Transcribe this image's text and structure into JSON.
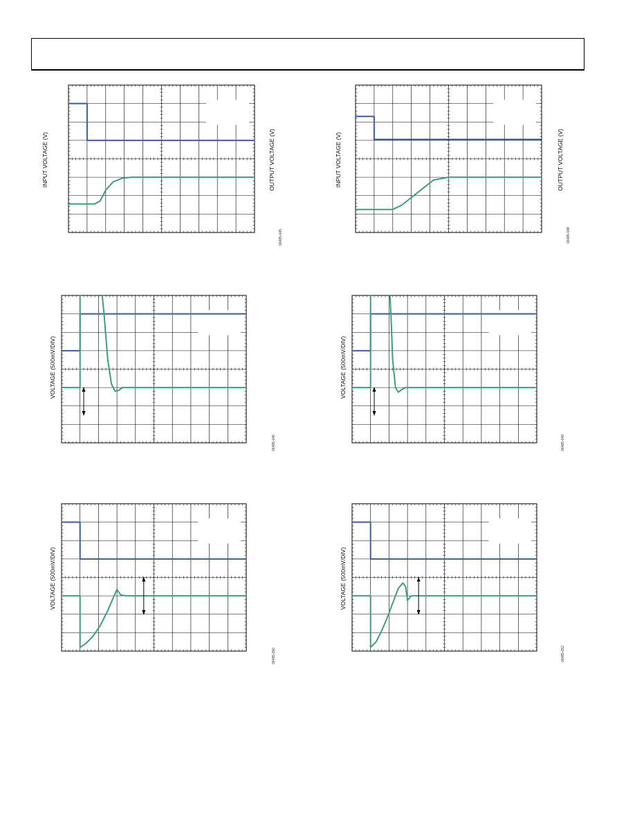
{
  "colors": {
    "input_trace": "#3a5da8",
    "output_trace": "#3aa07a",
    "grid": "#000000",
    "frame": "#000000"
  },
  "page": {
    "header_box": ""
  },
  "chart_data": [
    {
      "id": "fig-1",
      "type": "line",
      "title": "",
      "ylabel_left": "INPUT VOLTAGE (V)",
      "ylabel_right": "OUTPUT VOLTAGE (V)",
      "fig_id": "06485-045",
      "grid": true,
      "x_divisions": 10,
      "y_divisions": 8,
      "xlim": [
        0,
        10
      ],
      "ylim": [
        0,
        8
      ],
      "series": [
        {
          "color_key": "input_trace",
          "x": [
            0,
            1.0,
            1.0,
            10
          ],
          "y": [
            7.0,
            7.0,
            5.0,
            5.0
          ]
        },
        {
          "color_key": "output_trace",
          "x": [
            0,
            1.4,
            1.7,
            2.0,
            2.4,
            2.9,
            3.4,
            10
          ],
          "y": [
            1.55,
            1.55,
            1.7,
            2.3,
            2.75,
            2.95,
            3.0,
            3.0
          ]
        }
      ]
    },
    {
      "id": "fig-2",
      "type": "line",
      "title": "",
      "ylabel_left": "INPUT VOLTAGE (V)",
      "ylabel_right": "OUTPUT VOLTAGE (V)",
      "fig_id": "06485-048",
      "grid": true,
      "x_divisions": 10,
      "y_divisions": 8,
      "xlim": [
        0,
        10
      ],
      "ylim": [
        0,
        8
      ],
      "series": [
        {
          "color_key": "input_trace",
          "x": [
            0,
            1.0,
            1.0,
            10
          ],
          "y": [
            6.3,
            6.3,
            5.05,
            5.05
          ]
        },
        {
          "color_key": "output_trace",
          "x": [
            0,
            2.0,
            2.5,
            3.5,
            4.2,
            5.0,
            10
          ],
          "y": [
            1.25,
            1.25,
            1.5,
            2.3,
            2.85,
            3.0,
            3.0
          ]
        }
      ]
    },
    {
      "id": "fig-3",
      "type": "line",
      "title": "",
      "ylabel": "VOLTAGE (500mV/DIV)",
      "fig_id": "06485-046",
      "grid": true,
      "x_divisions": 10,
      "y_divisions": 8,
      "xlim": [
        0,
        10
      ],
      "ylim": [
        0,
        8
      ],
      "series": [
        {
          "color_key": "input_trace",
          "x": [
            0,
            1.0,
            1.0,
            10
          ],
          "y": [
            5.0,
            5.0,
            7.0,
            7.0
          ]
        },
        {
          "color_key": "output_trace",
          "x": [
            0,
            1.0,
            1.0,
            2.1,
            2.3,
            2.5,
            2.7,
            2.9,
            3.1,
            3.3,
            3.6,
            10
          ],
          "y": [
            3.0,
            3.0,
            9.0,
            9.0,
            7.0,
            4.5,
            3.2,
            2.8,
            2.85,
            3.0,
            3.0,
            3.0
          ]
        }
      ],
      "annotations": [
        {
          "type": "double-arrow",
          "x": 1.2,
          "y_from": 3.0,
          "y_to": 1.5
        }
      ]
    },
    {
      "id": "fig-4",
      "type": "line",
      "title": "",
      "ylabel": "VOLTAGE (500mV/DIV)",
      "fig_id": "06485-049",
      "grid": true,
      "x_divisions": 10,
      "y_divisions": 8,
      "xlim": [
        0,
        10
      ],
      "ylim": [
        0,
        8
      ],
      "series": [
        {
          "color_key": "input_trace",
          "x": [
            0,
            1.0,
            1.0,
            10
          ],
          "y": [
            5.0,
            5.0,
            7.0,
            7.0
          ]
        },
        {
          "color_key": "output_trace",
          "x": [
            0,
            1.0,
            1.0,
            2.0,
            2.1,
            2.2,
            2.35,
            2.5,
            2.7,
            2.9,
            3.2,
            10
          ],
          "y": [
            3.0,
            3.0,
            9.0,
            9.0,
            7.0,
            4.5,
            3.0,
            2.75,
            2.9,
            3.0,
            3.0,
            3.0
          ]
        }
      ],
      "annotations": [
        {
          "type": "double-arrow",
          "x": 1.2,
          "y_from": 3.0,
          "y_to": 1.5
        }
      ]
    },
    {
      "id": "fig-5",
      "type": "line",
      "title": "",
      "ylabel": "VOLTAGE (500mV/DIV)",
      "fig_id": "06485-050",
      "grid": true,
      "x_divisions": 10,
      "y_divisions": 8,
      "xlim": [
        0,
        10
      ],
      "ylim": [
        0,
        8
      ],
      "series": [
        {
          "color_key": "input_trace",
          "x": [
            0,
            1.0,
            1.0,
            10
          ],
          "y": [
            7.0,
            7.0,
            5.0,
            5.0
          ]
        },
        {
          "color_key": "output_trace",
          "x": [
            0,
            1.0,
            1.0,
            1.3,
            1.7,
            2.1,
            2.5,
            2.8,
            3.0,
            3.2,
            3.5,
            4.0,
            10
          ],
          "y": [
            3.0,
            3.0,
            0.2,
            0.4,
            0.8,
            1.4,
            2.2,
            2.9,
            3.35,
            3.05,
            3.0,
            3.0,
            3.0
          ]
        }
      ],
      "annotations": [
        {
          "type": "double-arrow",
          "x": 4.45,
          "y_from": 4.0,
          "y_to": 2.0
        }
      ]
    },
    {
      "id": "fig-6",
      "type": "line",
      "title": "",
      "ylabel": "VOLTAGE (500mV/DIV)",
      "fig_id": "06485-052",
      "grid": true,
      "x_divisions": 10,
      "y_divisions": 8,
      "xlim": [
        0,
        10
      ],
      "ylim": [
        0,
        8
      ],
      "series": [
        {
          "color_key": "input_trace",
          "x": [
            0,
            1.0,
            1.0,
            10
          ],
          "y": [
            7.0,
            7.0,
            5.0,
            5.0
          ]
        },
        {
          "color_key": "output_trace",
          "x": [
            0,
            1.0,
            1.0,
            1.3,
            1.6,
            1.9,
            2.2,
            2.5,
            2.75,
            2.9,
            3.0,
            3.2,
            3.6,
            10
          ],
          "y": [
            3.0,
            3.0,
            0.2,
            0.5,
            1.1,
            1.8,
            2.6,
            3.4,
            3.7,
            3.5,
            2.75,
            3.0,
            3.0,
            3.0
          ]
        }
      ],
      "annotations": [
        {
          "type": "double-arrow",
          "x": 3.6,
          "y_from": 4.0,
          "y_to": 2.0
        }
      ]
    }
  ]
}
